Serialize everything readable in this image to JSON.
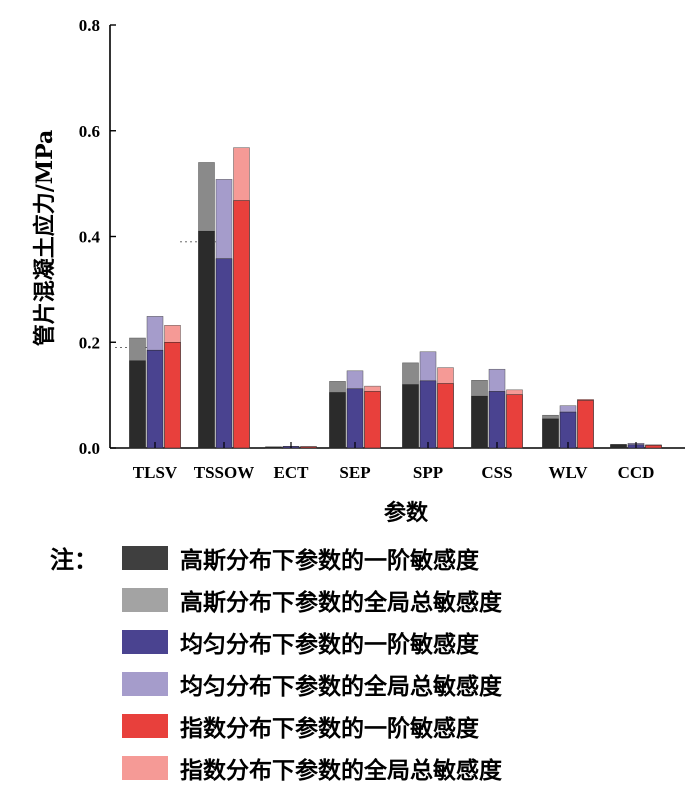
{
  "chart_data": {
    "type": "bar",
    "xlabel": "参数",
    "ylabel": "管片混凝土应力/MPa",
    "ylim": [
      0,
      0.8
    ],
    "yticks": [
      "0.0",
      "0.2",
      "0.4",
      "0.6",
      "0.8"
    ],
    "ytick_values": [
      0,
      0.2,
      0.4,
      0.6,
      0.8
    ],
    "categories": [
      "TLSV",
      "TSSOW",
      "ECT",
      "SEP",
      "SPP",
      "CSS",
      "WLV",
      "CCD"
    ],
    "series": [
      {
        "name": "高斯分布下参数的一阶敏感度",
        "distribution": "高斯",
        "kind": "一阶",
        "values": [
          0.165,
          0.41,
          0.002,
          0.105,
          0.12,
          0.098,
          0.055,
          0.006
        ]
      },
      {
        "name": "高斯分布下参数的全局总敏感度",
        "distribution": "高斯",
        "kind": "全局总",
        "values": [
          0.208,
          0.54,
          0.002,
          0.126,
          0.161,
          0.128,
          0.062,
          0.007
        ]
      },
      {
        "name": "均匀分布下参数的一阶敏感度",
        "distribution": "均匀",
        "kind": "一阶",
        "values": [
          0.185,
          0.358,
          0.003,
          0.112,
          0.127,
          0.107,
          0.068,
          0.006
        ]
      },
      {
        "name": "均匀分布下参数的全局总敏感度",
        "distribution": "均匀",
        "kind": "全局总",
        "values": [
          0.249,
          0.508,
          0.003,
          0.146,
          0.182,
          0.149,
          0.08,
          0.009
        ]
      },
      {
        "name": "指数分布下参数的一阶敏感度",
        "distribution": "指数",
        "kind": "一阶",
        "values": [
          0.2,
          0.468,
          0.002,
          0.107,
          0.122,
          0.101,
          0.09,
          0.005
        ]
      },
      {
        "name": "指数分布下参数的全局总敏感度",
        "distribution": "指数",
        "kind": "全局总",
        "values": [
          0.232,
          0.568,
          0.003,
          0.117,
          0.152,
          0.11,
          0.092,
          0.006
        ]
      }
    ],
    "colors": {
      "gauss_first": "#2b2b2b",
      "gauss_total": "#8a8a8a",
      "uniform_first": "#4a4390",
      "uniform_total": "#a59ccb",
      "exp_first": "#e8403c",
      "exp_total": "#f59a96"
    }
  },
  "legend": {
    "note": "注：",
    "items": [
      {
        "label": "高斯分布下参数的一阶敏感度",
        "color": "#3f3f3f"
      },
      {
        "label": "高斯分布下参数的全局总敏感度",
        "color": "#a3a3a3"
      },
      {
        "label": "均匀分布下参数的一阶敏感度",
        "color": "#4a4390"
      },
      {
        "label": "均匀分布下参数的全局总敏感度",
        "color": "#a59ccb"
      },
      {
        "label": "指数分布下参数的一阶敏感度",
        "color": "#e8403c"
      },
      {
        "label": "指数分布下参数的全局总敏感度",
        "color": "#f59a96"
      }
    ]
  }
}
